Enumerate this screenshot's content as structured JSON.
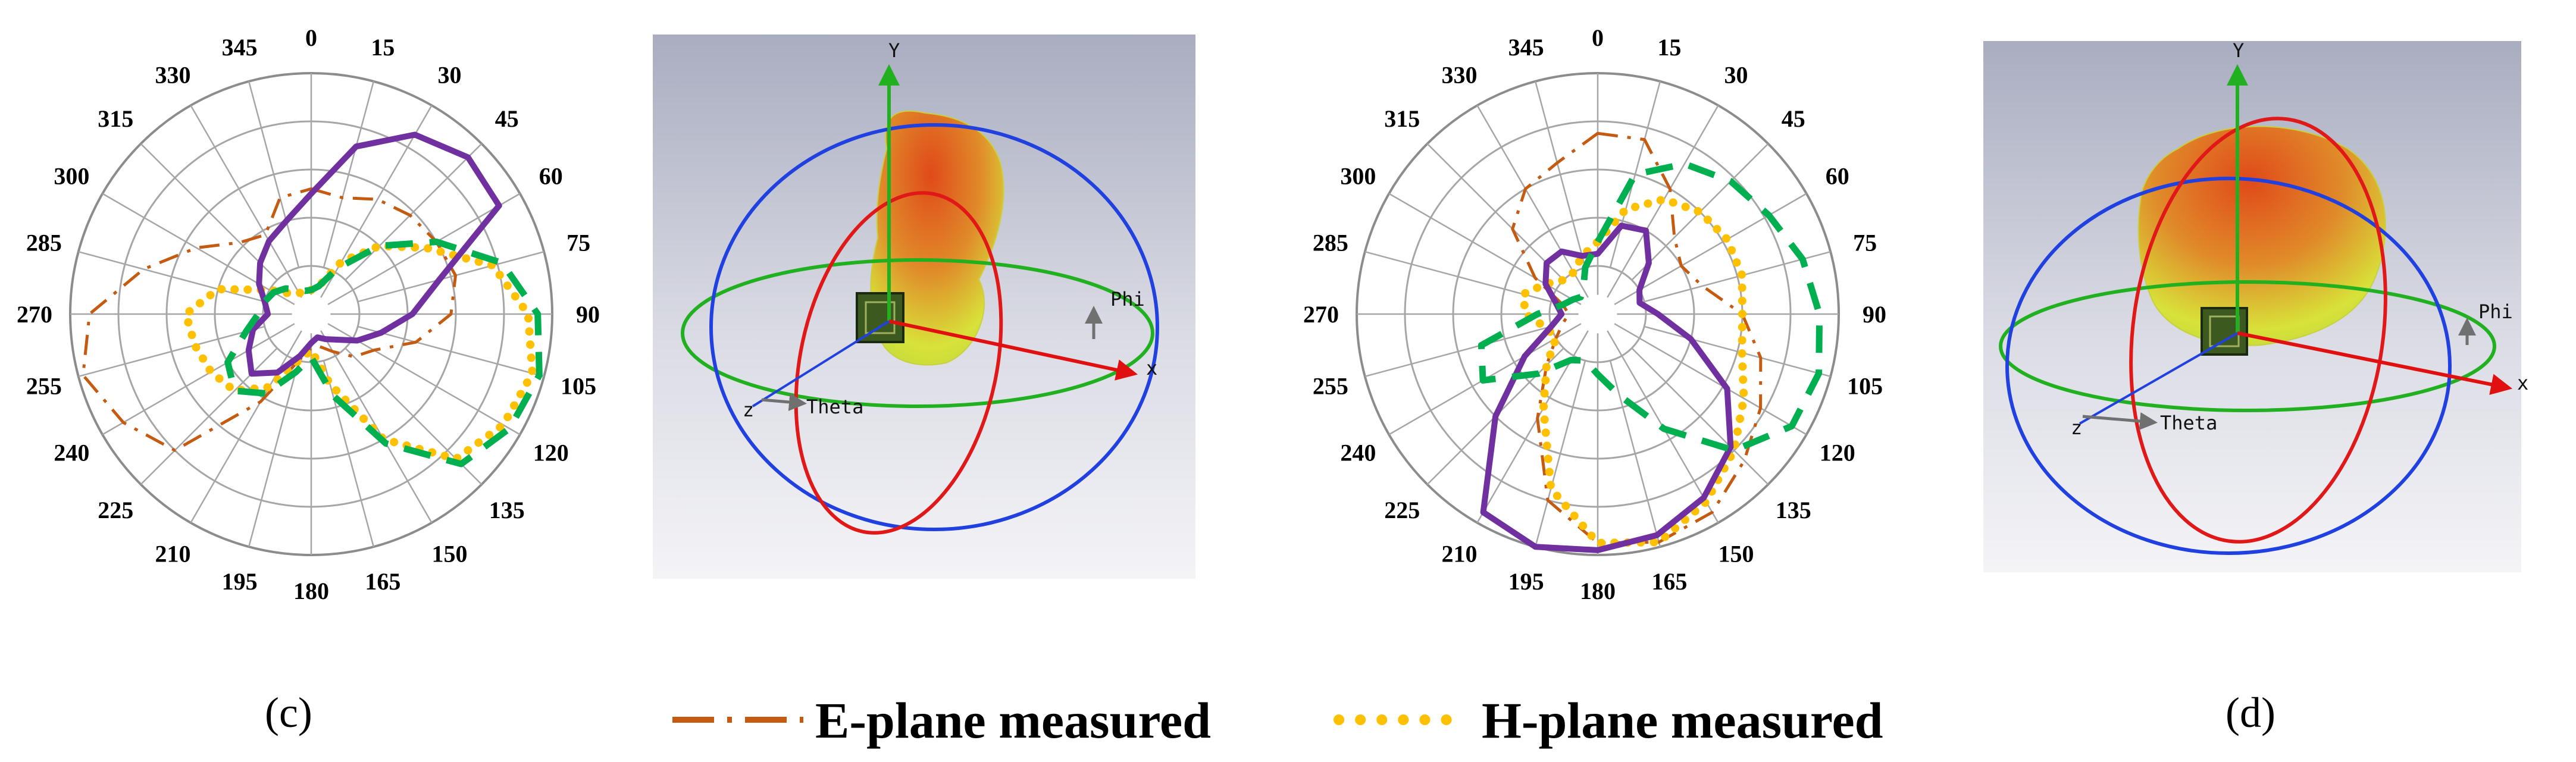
{
  "panels": [
    {
      "caption": "(c)"
    },
    {
      "caption": "(d)"
    }
  ],
  "legend": [
    {
      "label": "E-plane measured",
      "color": "#c55a11",
      "style": "dash-dot"
    },
    {
      "label": "H-plane measured",
      "color": "#ffc000",
      "style": "dotted"
    }
  ],
  "view3d": [
    {
      "y_label": "Y",
      "x_label": "x",
      "phi_label": "Phi",
      "theta_label": "Theta",
      "z_label": "z"
    },
    {
      "y_label": "Y",
      "x_label": "x",
      "phi_label": "Phi",
      "theta_label": "Theta",
      "z_label": "z"
    }
  ],
  "colors": {
    "e_plane": "#c55a11",
    "h_plane": "#ffc000",
    "series_purple": "#7030a0",
    "series_green": "#00b050",
    "grid": "#a6a6a6"
  },
  "chart_data": [
    {
      "type": "polar",
      "angle_ticks": [
        "0",
        "15",
        "30",
        "45",
        "60",
        "75",
        "90",
        "105",
        "120",
        "135",
        "150",
        "165",
        "180",
        "195",
        "210",
        "225",
        "240",
        "255",
        "270",
        "285",
        "300",
        "315",
        "330",
        "345"
      ],
      "rings": 5,
      "r_range": [
        0,
        1
      ],
      "series": [
        {
          "name": "E-plane measured",
          "color": "#c55a11",
          "style": "dash-dot",
          "theta": [
            0,
            15,
            30,
            45,
            60,
            75,
            90,
            105,
            120,
            135,
            150,
            165,
            180,
            195,
            210,
            225,
            240,
            255,
            270,
            285,
            300,
            315,
            330,
            345
          ],
          "r": [
            0.52,
            0.5,
            0.55,
            0.58,
            0.6,
            0.62,
            0.58,
            0.45,
            0.3,
            0.25,
            0.18,
            0.14,
            0.14,
            0.2,
            0.42,
            0.8,
            0.9,
            0.98,
            0.92,
            0.72,
            0.55,
            0.42,
            0.38,
            0.5
          ]
        },
        {
          "name": "H-plane measured",
          "color": "#ffc000",
          "style": "dotted",
          "theta": [
            0,
            15,
            30,
            45,
            60,
            75,
            90,
            105,
            120,
            135,
            150,
            165,
            180,
            195,
            210,
            225,
            240,
            255,
            270,
            285,
            300,
            315,
            330,
            345
          ],
          "r": [
            0.1,
            0.12,
            0.25,
            0.4,
            0.55,
            0.78,
            0.9,
            0.95,
            0.92,
            0.85,
            0.6,
            0.3,
            0.15,
            0.2,
            0.35,
            0.45,
            0.48,
            0.5,
            0.52,
            0.4,
            0.2,
            0.12,
            0.1,
            0.1
          ]
        },
        {
          "name": "",
          "color": "#7030a0",
          "style": "solid",
          "theta": [
            0,
            15,
            30,
            45,
            60,
            75,
            90,
            105,
            120,
            135,
            150,
            165,
            180,
            195,
            210,
            225,
            240,
            255,
            270,
            285,
            300,
            315,
            330,
            345
          ],
          "r": [
            0.5,
            0.72,
            0.86,
            0.92,
            0.9,
            0.55,
            0.42,
            0.3,
            0.22,
            0.15,
            0.12,
            0.1,
            0.12,
            0.18,
            0.28,
            0.35,
            0.3,
            0.25,
            0.18,
            0.2,
            0.25,
            0.3,
            0.35,
            0.4
          ]
        },
        {
          "name": "",
          "color": "#00b050",
          "style": "dashed",
          "theta": [
            0,
            15,
            30,
            45,
            60,
            75,
            90,
            105,
            120,
            135,
            150,
            165,
            180,
            195,
            210,
            225,
            240,
            255,
            270,
            285,
            300,
            315,
            330,
            345
          ],
          "r": [
            0.1,
            0.12,
            0.22,
            0.4,
            0.6,
            0.82,
            0.94,
            0.98,
            0.95,
            0.88,
            0.62,
            0.35,
            0.18,
            0.25,
            0.38,
            0.45,
            0.4,
            0.28,
            0.22,
            0.2,
            0.18,
            0.15,
            0.12,
            0.1
          ]
        }
      ]
    },
    {
      "type": "polar",
      "angle_ticks": [
        "0",
        "15",
        "30",
        "45",
        "60",
        "75",
        "90",
        "105",
        "120",
        "135",
        "150",
        "165",
        "180",
        "195",
        "210",
        "225",
        "240",
        "255",
        "270",
        "285",
        "300",
        "315",
        "330",
        "345"
      ],
      "rings": 5,
      "r_range": [
        0,
        1
      ],
      "series": [
        {
          "name": "E-plane measured",
          "color": "#c55a11",
          "style": "dash-dot",
          "theta": [
            0,
            15,
            30,
            45,
            60,
            75,
            90,
            105,
            120,
            135,
            150,
            165,
            180,
            195,
            210,
            225,
            240,
            255,
            270,
            285,
            300,
            315,
            330,
            345
          ],
          "r": [
            0.75,
            0.75,
            0.6,
            0.45,
            0.4,
            0.45,
            0.6,
            0.7,
            0.78,
            0.86,
            0.95,
            0.98,
            0.95,
            0.8,
            0.5,
            0.3,
            0.2,
            0.15,
            0.12,
            0.15,
            0.3,
            0.5,
            0.6,
            0.65
          ]
        },
        {
          "name": "H-plane measured",
          "color": "#ffc000",
          "style": "dotted",
          "theta": [
            0,
            15,
            30,
            45,
            60,
            75,
            90,
            105,
            120,
            135,
            150,
            165,
            180,
            195,
            210,
            225,
            240,
            255,
            270,
            285,
            300,
            315,
            330,
            345
          ],
          "r": [
            0.3,
            0.45,
            0.55,
            0.6,
            0.62,
            0.62,
            0.6,
            0.62,
            0.7,
            0.8,
            0.9,
            0.98,
            0.95,
            0.75,
            0.45,
            0.3,
            0.2,
            0.22,
            0.3,
            0.32,
            0.25,
            0.2,
            0.2,
            0.25
          ]
        },
        {
          "name": "",
          "color": "#7030a0",
          "style": "solid",
          "theta": [
            0,
            15,
            30,
            45,
            60,
            75,
            90,
            105,
            120,
            135,
            150,
            165,
            180,
            195,
            210,
            225,
            240,
            255,
            270,
            285,
            300,
            315,
            330,
            345
          ],
          "r": [
            0.25,
            0.38,
            0.4,
            0.3,
            0.2,
            0.18,
            0.25,
            0.4,
            0.62,
            0.78,
            0.88,
            0.95,
            0.98,
            1.0,
            0.95,
            0.6,
            0.35,
            0.2,
            0.15,
            0.18,
            0.25,
            0.3,
            0.3,
            0.25
          ]
        },
        {
          "name": "",
          "color": "#00b050",
          "style": "dashed",
          "theta": [
            0,
            15,
            30,
            45,
            60,
            75,
            90,
            105,
            120,
            135,
            150,
            165,
            180,
            195,
            210,
            225,
            240,
            255,
            270,
            285,
            300,
            315,
            330,
            345
          ],
          "r": [
            0.3,
            0.6,
            0.72,
            0.78,
            0.82,
            0.88,
            0.92,
            0.95,
            0.93,
            0.8,
            0.55,
            0.35,
            0.25,
            0.2,
            0.22,
            0.35,
            0.55,
            0.5,
            0.25,
            0.15,
            0.12,
            0.1,
            0.12,
            0.2
          ]
        }
      ]
    }
  ]
}
